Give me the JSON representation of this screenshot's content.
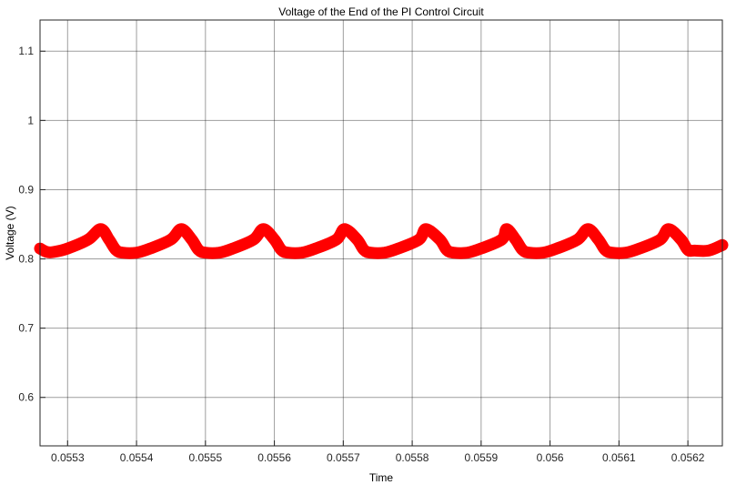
{
  "chart_data": {
    "type": "line",
    "title": "Voltage of the End of the PI Control Circuit",
    "xlabel": "Time",
    "ylabel": "Voltage (V)",
    "xlim": [
      0.05526,
      0.05625
    ],
    "ylim": [
      0.53,
      1.145
    ],
    "xticks": [
      0.0553,
      0.0554,
      0.0555,
      0.0556,
      0.0557,
      0.0558,
      0.0559,
      0.056,
      0.0561,
      0.0562
    ],
    "xtick_labels": [
      "0.0553",
      "0.0554",
      "0.0555",
      "0.0556",
      "0.0557",
      "0.0558",
      "0.0559",
      "0.056",
      "0.0561",
      "0.0562"
    ],
    "yticks": [
      0.6,
      0.7,
      0.8,
      0.9,
      1.0,
      1.1
    ],
    "ytick_labels": [
      "0.6",
      "0.7",
      "0.8",
      "0.9",
      "1",
      "1.1"
    ],
    "grid": true,
    "series": [
      {
        "color": "#ff0000",
        "x": [
          0.05526,
          0.05527,
          0.05528,
          0.0553,
          0.05533,
          0.055348,
          0.05536,
          0.05537,
          0.05538,
          0.0554,
          0.05542,
          0.05545,
          0.055465,
          0.05548,
          0.05549,
          0.0555,
          0.05552,
          0.05554,
          0.05557,
          0.055584,
          0.0556,
          0.05561,
          0.05562,
          0.05564,
          0.05566,
          0.05569,
          0.055702,
          0.05572,
          0.05573,
          0.05574,
          0.05576,
          0.05578,
          0.05581,
          0.05582,
          0.05584,
          0.05585,
          0.05586,
          0.05588,
          0.0559,
          0.05593,
          0.055937,
          0.05595,
          0.05596,
          0.05597,
          0.05599,
          0.05601,
          0.05604,
          0.056055,
          0.05607,
          0.05608,
          0.05609,
          0.05611,
          0.05613,
          0.05616,
          0.056172,
          0.05619,
          0.0562,
          0.05621,
          0.05623,
          0.05625
        ],
        "y": [
          0.815,
          0.81,
          0.81,
          0.815,
          0.828,
          0.843,
          0.828,
          0.813,
          0.809,
          0.809,
          0.815,
          0.828,
          0.843,
          0.828,
          0.813,
          0.809,
          0.809,
          0.815,
          0.828,
          0.843,
          0.828,
          0.813,
          0.809,
          0.809,
          0.815,
          0.828,
          0.843,
          0.828,
          0.813,
          0.809,
          0.809,
          0.815,
          0.828,
          0.843,
          0.828,
          0.813,
          0.809,
          0.809,
          0.815,
          0.828,
          0.843,
          0.828,
          0.813,
          0.809,
          0.809,
          0.815,
          0.828,
          0.843,
          0.828,
          0.813,
          0.809,
          0.809,
          0.815,
          0.828,
          0.843,
          0.828,
          0.813,
          0.812,
          0.812,
          0.82
        ]
      }
    ]
  }
}
